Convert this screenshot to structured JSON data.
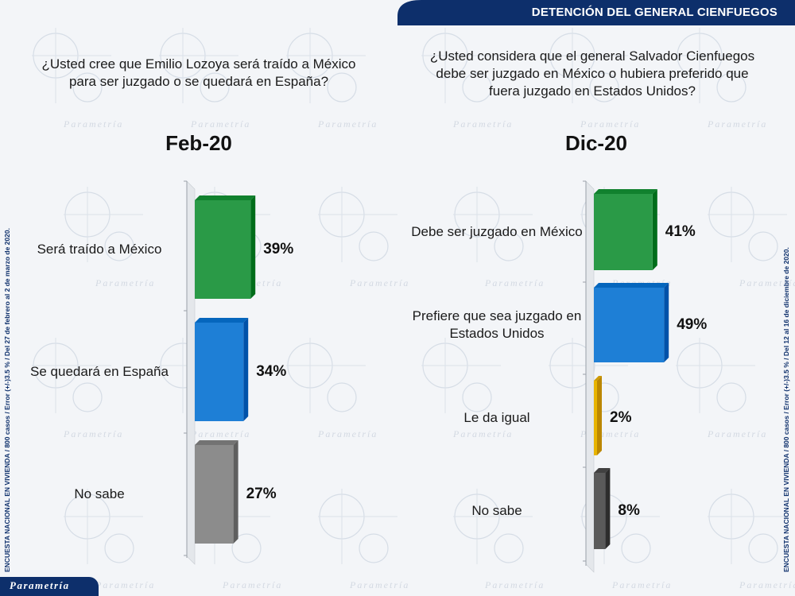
{
  "header": {
    "title": "DETENCIÓN DEL GENERAL CIENFUEGOS",
    "color": "#0d2f6b"
  },
  "watermark": "Parametría",
  "footer": {
    "logo": "Parametría"
  },
  "side_notes": {
    "left": "ENCUESTA NACIONAL EN VIVIENDA / 800 casos / Error (+/-)3.5 % / Del 27 de febrero al 2 de marzo de 2020.",
    "right": "ENCUESTA NACIONAL EN VIVIENDA / 800 casos / Error (+/-)3.5 % / Del 12 al 16 de diciembre de 2020."
  },
  "chart_data": [
    {
      "type": "bar",
      "orientation": "horizontal",
      "question": "¿Usted cree que Emilio Lozoya será traído a México para ser juzgado o se quedará en España?",
      "title": "Feb-20",
      "categories": [
        "Será traído a México",
        "Se quedará en España",
        "No sabe"
      ],
      "values": [
        39,
        34,
        27
      ],
      "value_labels": [
        "39%",
        "34%",
        "27%"
      ],
      "colors": [
        "#2a9a47",
        "#1e7fd6",
        "#8c8c8c"
      ]
    },
    {
      "type": "bar",
      "orientation": "horizontal",
      "question": "¿Usted considera que el general Salvador Cienfuegos debe ser juzgado en México o hubiera preferido que fuera juzgado en Estados Unidos?",
      "title": "Dic-20",
      "categories": [
        "Debe ser juzgado en México",
        "Prefiere que sea juzgado en Estados Unidos",
        "Le da igual",
        "No sabe"
      ],
      "values": [
        41,
        49,
        2,
        8
      ],
      "value_labels": [
        "41%",
        "49%",
        "2%",
        "8%"
      ],
      "colors": [
        "#2a9a47",
        "#1e7fd6",
        "#e8b400",
        "#5a5a5a"
      ]
    }
  ]
}
